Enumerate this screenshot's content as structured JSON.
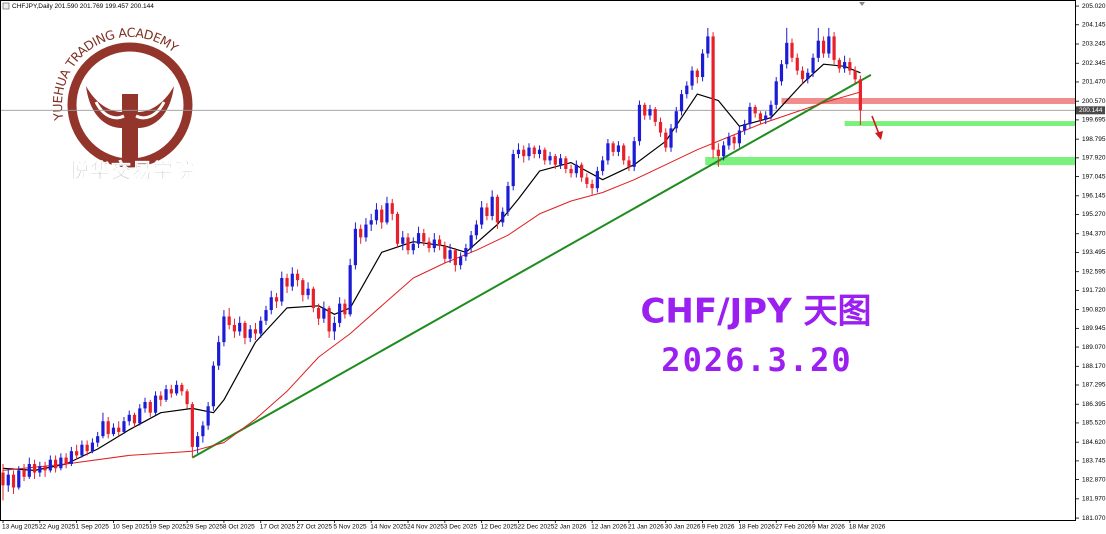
{
  "chart_data": {
    "type": "candlestick",
    "header": "CHFJPY,Daily  201.590 201.769 199.457 200.144",
    "up_color": "#1c1cd6",
    "down_color": "#e8202a",
    "ylim": [
      180.98,
      205.21
    ],
    "yticks": [
      {
        "value": 205.02,
        "label": "205.020"
      },
      204.145,
      203.245,
      202.345,
      {
        "value": 201.47,
        "label": "201.470"
      },
      {
        "value": 200.57,
        "label": "200.570"
      },
      199.695,
      198.795,
      {
        "value": 197.92,
        "label": "197.920"
      },
      197.045,
      196.145,
      {
        "value": 195.27,
        "label": "195.270"
      },
      {
        "value": 194.37,
        "label": "194.370"
      },
      193.495,
      192.595,
      {
        "value": 191.72,
        "label": "191.720"
      },
      {
        "value": 190.82,
        "label": "190.820"
      },
      189.945,
      {
        "value": 189.07,
        "label": "189.070"
      },
      {
        "value": 188.17,
        "label": "188.170"
      },
      187.295,
      186.395,
      {
        "value": 185.52,
        "label": "185.520"
      },
      {
        "value": 184.62,
        "label": "184.620"
      },
      183.745,
      {
        "value": 182.87,
        "label": "182.870"
      },
      {
        "value": 181.97,
        "label": "181.970"
      },
      {
        "value": 181.07,
        "label": "181.070"
      }
    ],
    "last_price": 200.144,
    "categories": [
      "13 Aug 2025",
      null,
      null,
      null,
      null,
      null,
      null,
      "22 Aug 2025",
      null,
      null,
      null,
      null,
      null,
      null,
      "1 Sep 2025",
      null,
      null,
      null,
      null,
      null,
      null,
      "10 Sep 2025",
      null,
      null,
      null,
      null,
      null,
      null,
      "19 Sep 2025",
      null,
      null,
      null,
      null,
      null,
      null,
      "29 Sep 2025",
      null,
      null,
      null,
      null,
      null,
      null,
      "8 Oct 2025",
      null,
      null,
      null,
      null,
      null,
      null,
      "17 Oct 2025",
      null,
      null,
      null,
      null,
      null,
      null,
      "27 Oct 2025",
      null,
      null,
      null,
      null,
      null,
      null,
      "5 Nov 2025",
      null,
      null,
      null,
      null,
      null,
      null,
      "14 Nov 2025",
      null,
      null,
      null,
      null,
      null,
      null,
      "24 Nov 2025",
      null,
      null,
      null,
      null,
      null,
      null,
      "3 Dec 2025",
      null,
      null,
      null,
      null,
      null,
      null,
      "12 Dec 2025",
      null,
      null,
      null,
      null,
      null,
      null,
      "22 Dec 2025",
      null,
      null,
      null,
      null,
      null,
      null,
      "2 Jan 2026",
      null,
      null,
      null,
      null,
      null,
      null,
      "12 Jan 2026",
      null,
      null,
      null,
      null,
      null,
      null,
      "21 Jan 2026",
      null,
      null,
      null,
      null,
      null,
      null,
      "30 Jan 2026",
      null,
      null,
      null,
      null,
      null,
      null,
      "9 Feb 2026",
      null,
      null,
      null,
      null,
      null,
      null,
      "18 Feb 2026",
      null,
      null,
      null,
      null,
      null,
      null,
      "27 Feb 2026",
      null,
      null,
      null,
      null,
      null,
      null,
      "9 Mar 2026",
      null,
      null,
      null,
      null,
      null,
      null,
      "18 Mar 2026",
      null,
      null
    ],
    "candles": [
      [
        183.2,
        183.6,
        181.9,
        182.6
      ],
      [
        182.6,
        183.4,
        182.3,
        183.1
      ],
      [
        183.1,
        183.3,
        182.2,
        182.5
      ],
      [
        182.5,
        183.5,
        182.4,
        183.3
      ],
      [
        183.3,
        183.6,
        182.8,
        183.0
      ],
      [
        183.0,
        183.9,
        182.9,
        183.6
      ],
      [
        183.6,
        183.8,
        182.9,
        183.2
      ],
      [
        183.2,
        183.7,
        183.0,
        183.5
      ],
      [
        183.5,
        183.7,
        183.0,
        183.3
      ],
      [
        183.3,
        184.0,
        183.2,
        183.8
      ],
      [
        183.8,
        184.0,
        183.2,
        183.4
      ],
      [
        183.4,
        184.1,
        183.3,
        183.9
      ],
      [
        183.9,
        184.1,
        183.4,
        183.6
      ],
      [
        183.6,
        184.4,
        183.5,
        184.2
      ],
      [
        184.2,
        184.5,
        183.8,
        184.0
      ],
      [
        184.0,
        184.7,
        183.9,
        184.5
      ],
      [
        184.5,
        184.7,
        184.0,
        184.2
      ],
      [
        184.2,
        184.8,
        184.1,
        184.6
      ],
      [
        184.6,
        185.1,
        184.4,
        184.9
      ],
      [
        184.9,
        186.0,
        184.8,
        185.6
      ],
      [
        185.6,
        185.8,
        184.8,
        185.0
      ],
      [
        185.0,
        185.5,
        184.9,
        185.3
      ],
      [
        185.3,
        185.6,
        184.9,
        185.1
      ],
      [
        185.1,
        185.8,
        185.0,
        185.6
      ],
      [
        185.6,
        186.1,
        185.4,
        185.9
      ],
      [
        185.9,
        186.0,
        185.3,
        185.5
      ],
      [
        185.5,
        186.4,
        185.4,
        186.2
      ],
      [
        186.2,
        186.7,
        186.0,
        186.5
      ],
      [
        186.5,
        186.6,
        185.8,
        186.0
      ],
      [
        186.0,
        187.0,
        185.9,
        186.8
      ],
      [
        186.8,
        187.0,
        186.3,
        186.6
      ],
      [
        186.6,
        187.3,
        186.5,
        187.1
      ],
      [
        187.1,
        187.3,
        186.7,
        186.9
      ],
      [
        186.9,
        187.5,
        186.8,
        187.3
      ],
      [
        187.3,
        187.4,
        186.8,
        187.0
      ],
      [
        187.0,
        187.1,
        186.2,
        186.4
      ],
      [
        186.4,
        186.5,
        183.9,
        184.4
      ],
      [
        184.4,
        185.1,
        184.1,
        184.9
      ],
      [
        184.9,
        185.6,
        184.6,
        185.4
      ],
      [
        185.4,
        186.5,
        185.2,
        186.3
      ],
      [
        186.3,
        188.4,
        186.1,
        188.2
      ],
      [
        188.2,
        189.6,
        188.0,
        189.3
      ],
      [
        189.3,
        190.8,
        189.1,
        190.5
      ],
      [
        190.5,
        190.9,
        189.9,
        190.1
      ],
      [
        190.1,
        190.4,
        189.5,
        189.8
      ],
      [
        189.8,
        190.5,
        189.6,
        190.2
      ],
      [
        190.2,
        190.3,
        189.2,
        189.5
      ],
      [
        189.5,
        190.1,
        189.3,
        189.9
      ],
      [
        189.9,
        190.2,
        189.4,
        189.7
      ],
      [
        189.7,
        190.5,
        189.5,
        190.3
      ],
      [
        190.3,
        191.0,
        190.1,
        190.8
      ],
      [
        190.8,
        191.7,
        190.6,
        191.4
      ],
      [
        191.4,
        191.6,
        190.9,
        191.2
      ],
      [
        191.2,
        192.6,
        191.0,
        192.3
      ],
      [
        192.3,
        192.5,
        191.6,
        191.9
      ],
      [
        191.9,
        192.8,
        191.7,
        192.5
      ],
      [
        192.5,
        192.7,
        191.9,
        192.2
      ],
      [
        192.2,
        192.3,
        191.2,
        191.5
      ],
      [
        191.5,
        192.1,
        191.3,
        191.8
      ],
      [
        191.8,
        191.9,
        190.7,
        190.9
      ],
      [
        190.9,
        191.1,
        190.1,
        190.4
      ],
      [
        190.4,
        191.2,
        190.2,
        190.9
      ],
      [
        190.9,
        191.0,
        189.5,
        189.8
      ],
      [
        189.8,
        190.5,
        189.4,
        190.2
      ],
      [
        190.2,
        191.4,
        190.0,
        191.1
      ],
      [
        191.1,
        191.3,
        190.4,
        190.6
      ],
      [
        190.6,
        193.2,
        190.5,
        192.9
      ],
      [
        192.9,
        194.9,
        192.7,
        194.6
      ],
      [
        194.6,
        194.8,
        193.9,
        194.2
      ],
      [
        194.2,
        195.1,
        194.0,
        194.8
      ],
      [
        194.8,
        195.3,
        194.5,
        195.0
      ],
      [
        195.0,
        195.8,
        194.8,
        195.5
      ],
      [
        195.5,
        195.7,
        194.6,
        194.9
      ],
      [
        194.9,
        196.1,
        194.8,
        195.8
      ],
      [
        195.8,
        196.0,
        195.0,
        195.3
      ],
      [
        195.3,
        195.4,
        193.7,
        193.9
      ],
      [
        193.9,
        194.5,
        193.6,
        194.2
      ],
      [
        194.2,
        194.4,
        193.4,
        193.6
      ],
      [
        193.6,
        194.2,
        193.4,
        193.9
      ],
      [
        193.9,
        194.7,
        193.7,
        194.4
      ],
      [
        194.4,
        194.6,
        193.8,
        194.0
      ],
      [
        194.0,
        194.2,
        193.5,
        193.7
      ],
      [
        193.7,
        194.4,
        193.5,
        194.1
      ],
      [
        194.1,
        194.3,
        193.6,
        193.8
      ],
      [
        193.8,
        194.0,
        193.0,
        193.2
      ],
      [
        193.2,
        193.9,
        193.0,
        193.6
      ],
      [
        193.6,
        193.7,
        192.6,
        192.9
      ],
      [
        192.9,
        193.5,
        192.7,
        193.3
      ],
      [
        193.3,
        193.9,
        193.1,
        193.7
      ],
      [
        193.7,
        194.5,
        193.5,
        194.3
      ],
      [
        194.3,
        195.0,
        194.1,
        194.8
      ],
      [
        194.8,
        195.9,
        194.6,
        195.6
      ],
      [
        195.6,
        195.8,
        195.0,
        195.2
      ],
      [
        195.2,
        196.4,
        195.0,
        196.1
      ],
      [
        196.1,
        196.2,
        194.6,
        194.9
      ],
      [
        194.9,
        195.6,
        194.7,
        195.4
      ],
      [
        195.4,
        196.8,
        195.2,
        196.6
      ],
      [
        196.6,
        198.3,
        196.4,
        198.1
      ],
      [
        198.1,
        198.6,
        197.9,
        198.3
      ],
      [
        198.3,
        198.5,
        197.7,
        198.0
      ],
      [
        198.0,
        198.6,
        197.8,
        198.4
      ],
      [
        198.4,
        198.5,
        197.9,
        198.1
      ],
      [
        198.1,
        198.5,
        197.9,
        198.3
      ],
      [
        198.3,
        198.4,
        197.6,
        197.8
      ],
      [
        197.8,
        198.2,
        197.6,
        198.0
      ],
      [
        198.0,
        198.1,
        197.4,
        197.6
      ],
      [
        197.6,
        198.1,
        197.4,
        197.9
      ],
      [
        197.9,
        198.0,
        197.2,
        197.4
      ],
      [
        197.4,
        197.6,
        197.0,
        197.2
      ],
      [
        197.2,
        197.8,
        197.0,
        197.6
      ],
      [
        197.6,
        197.7,
        196.8,
        197.0
      ],
      [
        197.0,
        197.2,
        196.5,
        196.7
      ],
      [
        196.7,
        196.9,
        196.2,
        196.5
      ],
      [
        196.5,
        197.5,
        196.3,
        197.3
      ],
      [
        197.3,
        198.0,
        197.1,
        197.8
      ],
      [
        197.8,
        198.8,
        197.6,
        198.6
      ],
      [
        198.6,
        198.7,
        198.0,
        198.2
      ],
      [
        198.2,
        198.7,
        198.0,
        198.5
      ],
      [
        198.5,
        198.6,
        197.6,
        197.8
      ],
      [
        197.8,
        198.0,
        197.3,
        197.5
      ],
      [
        197.5,
        198.9,
        197.3,
        198.7
      ],
      [
        198.7,
        200.6,
        198.5,
        200.4
      ],
      [
        200.4,
        200.5,
        199.7,
        199.9
      ],
      [
        199.9,
        200.4,
        199.7,
        200.2
      ],
      [
        200.2,
        200.3,
        199.4,
        199.6
      ],
      [
        199.6,
        199.8,
        198.9,
        199.1
      ],
      [
        199.1,
        199.3,
        198.2,
        198.4
      ],
      [
        198.4,
        199.5,
        198.2,
        199.3
      ],
      [
        199.3,
        200.3,
        199.1,
        200.1
      ],
      [
        200.1,
        201.1,
        199.9,
        200.9
      ],
      [
        200.9,
        201.5,
        200.7,
        201.3
      ],
      [
        201.3,
        202.2,
        201.1,
        202.0
      ],
      [
        202.0,
        202.1,
        201.4,
        201.7
      ],
      [
        201.7,
        203.0,
        201.5,
        202.8
      ],
      [
        202.8,
        204.0,
        202.6,
        203.6
      ],
      [
        203.6,
        203.8,
        197.9,
        198.3
      ],
      [
        198.3,
        198.6,
        197.5,
        198.0
      ],
      [
        198.0,
        198.7,
        197.8,
        198.5
      ],
      [
        198.5,
        199.1,
        198.3,
        198.9
      ],
      [
        198.9,
        199.0,
        198.3,
        198.6
      ],
      [
        198.6,
        199.4,
        198.4,
        199.2
      ],
      [
        199.2,
        199.7,
        199.0,
        199.5
      ],
      [
        199.5,
        200.5,
        199.3,
        200.3
      ],
      [
        200.3,
        200.4,
        199.8,
        200.0
      ],
      [
        200.0,
        200.1,
        199.5,
        199.7
      ],
      [
        199.7,
        200.1,
        199.5,
        199.9
      ],
      [
        199.9,
        200.6,
        199.7,
        200.4
      ],
      [
        200.4,
        201.7,
        200.2,
        201.5
      ],
      [
        201.5,
        202.5,
        201.3,
        202.3
      ],
      [
        202.3,
        204.0,
        202.1,
        203.3
      ],
      [
        203.3,
        203.5,
        202.4,
        202.6
      ],
      [
        202.6,
        202.8,
        201.8,
        202.0
      ],
      [
        202.0,
        202.2,
        201.4,
        201.6
      ],
      [
        201.6,
        202.1,
        201.4,
        201.9
      ],
      [
        201.9,
        202.8,
        201.7,
        202.6
      ],
      [
        202.6,
        204.0,
        202.4,
        203.4
      ],
      [
        203.4,
        203.6,
        202.6,
        202.8
      ],
      [
        202.8,
        204.0,
        202.6,
        203.6
      ],
      [
        203.6,
        203.8,
        202.3,
        202.5
      ],
      [
        202.5,
        202.6,
        201.9,
        202.1
      ],
      [
        202.1,
        202.7,
        201.9,
        202.4
      ],
      [
        202.4,
        202.6,
        201.8,
        202.0
      ],
      [
        202.0,
        202.2,
        201.4,
        201.59
      ],
      [
        201.59,
        201.769,
        199.457,
        200.144
      ]
    ],
    "series": [
      {
        "color": "#000000",
        "x": [
          0,
          6,
          12,
          18,
          24,
          30,
          36,
          40,
          42,
          48,
          54,
          60,
          63,
          66,
          72,
          78,
          84,
          88,
          94,
          98,
          102,
          108,
          114,
          120,
          126,
          132,
          136,
          140,
          146,
          152,
          156,
          160,
          163
        ],
        "values": [
          183.4,
          183.3,
          183.6,
          184.3,
          185.2,
          186.0,
          186.2,
          186.0,
          186.6,
          189.3,
          190.9,
          191.0,
          190.6,
          190.9,
          193.5,
          194.0,
          193.8,
          193.5,
          194.8,
          196.0,
          197.3,
          197.7,
          196.9,
          197.6,
          198.7,
          200.9,
          200.6,
          199.4,
          199.8,
          201.4,
          202.3,
          202.2,
          201.9
        ]
      },
      {
        "color": "#e02020",
        "x": [
          0,
          12,
          24,
          36,
          42,
          48,
          54,
          60,
          66,
          72,
          78,
          84,
          90,
          96,
          102,
          108,
          114,
          120,
          126,
          132,
          138,
          144,
          150,
          156,
          163
        ],
        "values": [
          183.3,
          183.6,
          184.0,
          184.2,
          184.6,
          185.7,
          187.0,
          188.6,
          189.7,
          191.0,
          192.3,
          193.0,
          193.6,
          194.3,
          195.3,
          195.9,
          196.3,
          196.9,
          197.6,
          198.3,
          198.9,
          199.5,
          200.0,
          200.5,
          201.0
        ]
      }
    ],
    "trendline": {
      "color": "#1e8c1e",
      "x": [
        36,
        165
      ],
      "values": [
        183.9,
        201.8
      ]
    },
    "zones": [
      {
        "color": "#f28c8c",
        "x_from": 148,
        "ylim": [
          200.44,
          200.72
        ]
      },
      {
        "color": "#7cf07c",
        "x_from": 160,
        "ylim": [
          199.41,
          199.64
        ]
      },
      {
        "color": "#7cf07c",
        "x_from": 133.5,
        "ylim": [
          197.58,
          197.96
        ]
      }
    ],
    "annotations": [
      "CHF/JPY 天图",
      "2026.3.20"
    ]
  },
  "watermark": {
    "arc_text": "YUEHUA TRADING ACADEMY",
    "title": "悦华交易学院"
  }
}
